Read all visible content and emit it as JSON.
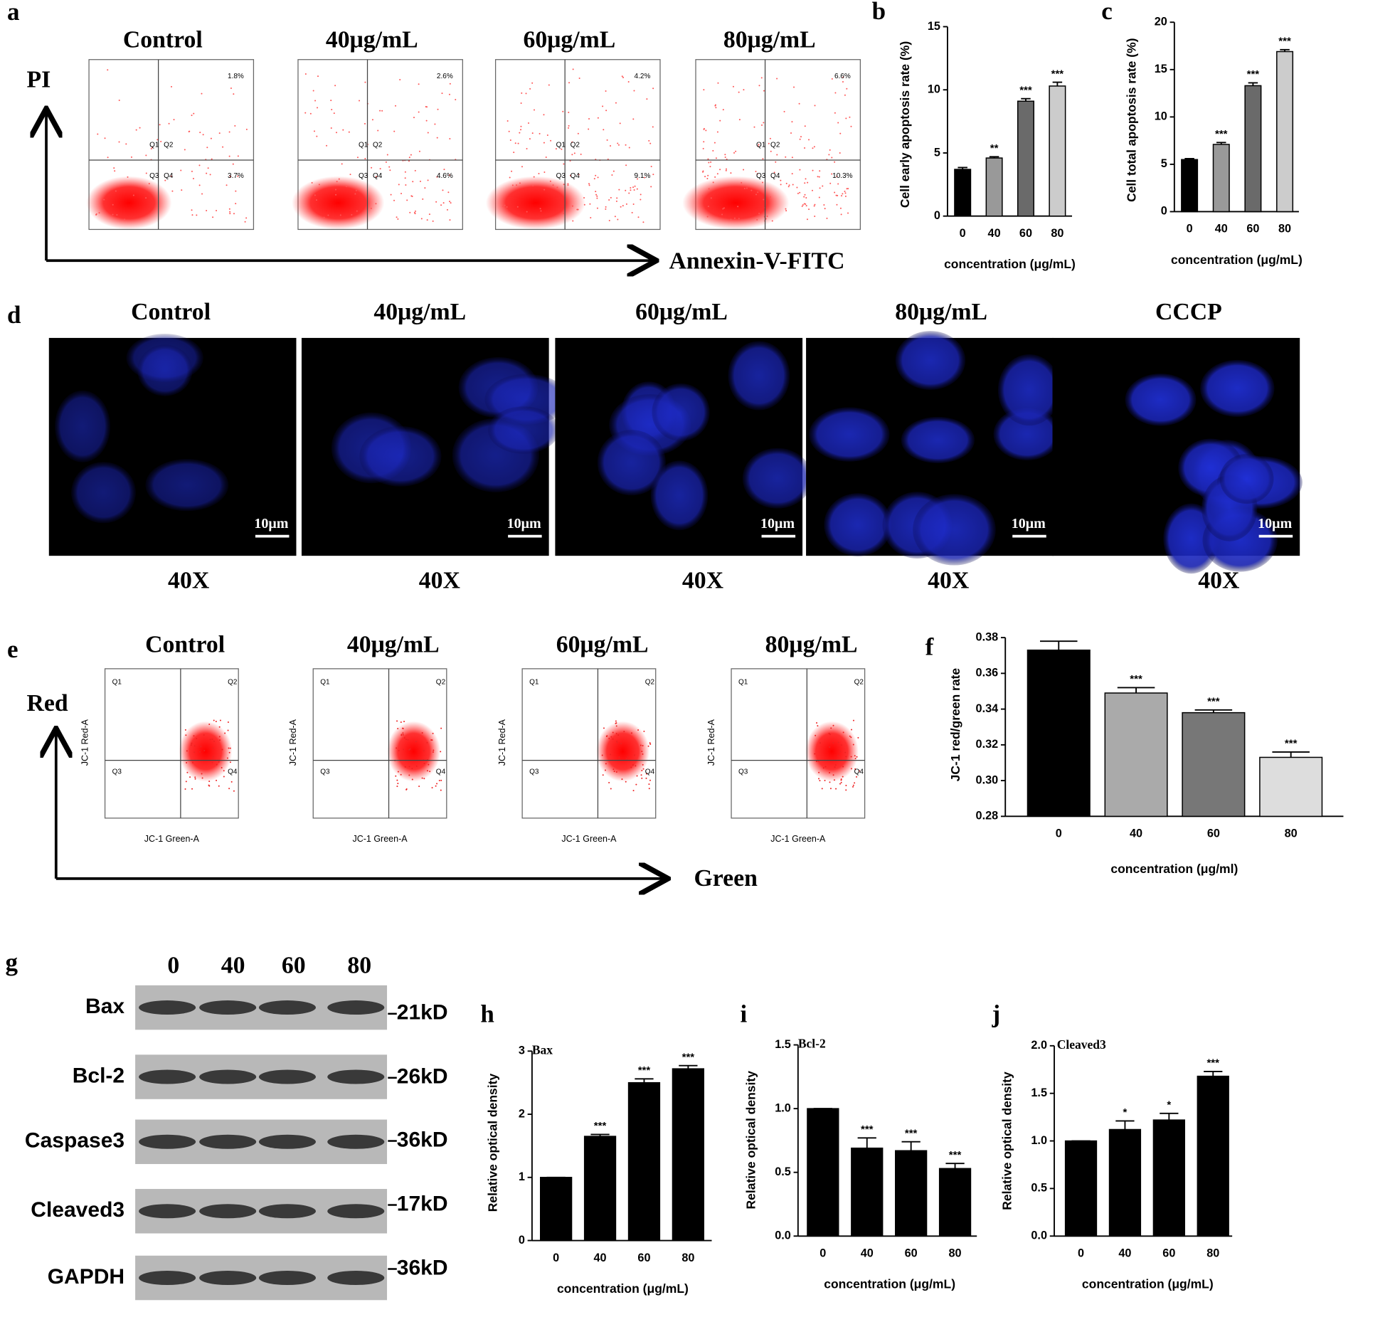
{
  "flow_apoptosis": {
    "label": "a",
    "y_axis": "PI",
    "x_axis": "Annexin-V-FITC",
    "quadrants": [
      "Q1",
      "Q2",
      "Q3",
      "Q4"
    ],
    "samples": [
      {
        "title": "Control",
        "upper_right": "1.8%",
        "lower_right": "3.7%"
      },
      {
        "title": "40μg/mL",
        "upper_right": "2.6%",
        "lower_right": "4.6%"
      },
      {
        "title": "60μg/mL",
        "upper_right": "4.2%",
        "lower_right": "9.1%"
      },
      {
        "title": "80μg/mL",
        "upper_right": "6.6%",
        "lower_right": "10.3%"
      }
    ]
  },
  "microscopy": {
    "label": "d",
    "scale_bar": "10μm",
    "magnification": "40X",
    "samples": [
      "Control",
      "40μg/mL",
      "60μg/mL",
      "80μg/mL",
      "CCCP"
    ]
  },
  "flow_jc1": {
    "label": "e",
    "y_axis": "Red",
    "x_axis": "Green",
    "panel_y_axis": "JC-1 Red-A",
    "panel_x_axis": "JC-1 Green-A",
    "quadrants": [
      "Q1",
      "Q2",
      "Q3",
      "Q4"
    ],
    "samples": [
      "Control",
      "40μg/mL",
      "60μg/mL",
      "80μg/mL"
    ]
  },
  "western_blot": {
    "label": "g",
    "lanes": [
      "0",
      "40",
      "60",
      "80"
    ],
    "proteins": [
      {
        "name": "Bax",
        "size": "21kD"
      },
      {
        "name": "Bcl-2",
        "size": "26kD"
      },
      {
        "name": "Caspase3",
        "size": "36kD"
      },
      {
        "name": "Cleaved3",
        "size": "17kD"
      },
      {
        "name": "GAPDH",
        "size": "36kD"
      }
    ]
  },
  "chart_data": [
    {
      "type": "bar",
      "label": "b",
      "ylabel": "Cell early apoptosis rate (%)",
      "xlabel": "concentration (μg/mL)",
      "categories": [
        "0",
        "40",
        "60",
        "80"
      ],
      "values": [
        3.7,
        4.6,
        9.1,
        10.3
      ],
      "errors": [
        0.15,
        0.1,
        0.2,
        0.3
      ],
      "annotations": [
        null,
        "**",
        "***",
        "***"
      ],
      "colors": [
        "#000000",
        "#999999",
        "#6a6a6a",
        "#cccccc"
      ],
      "ylim": [
        0,
        15
      ],
      "yticks": [
        0,
        5,
        10,
        15
      ]
    },
    {
      "type": "bar",
      "label": "c",
      "ylabel": "Cell total apoptosis rate (%)",
      "xlabel": "concentration (μg/mL)",
      "categories": [
        "0",
        "40",
        "60",
        "80"
      ],
      "values": [
        5.5,
        7.1,
        13.3,
        16.9
      ],
      "errors": [
        0.1,
        0.2,
        0.3,
        0.2
      ],
      "annotations": [
        null,
        "***",
        "***",
        "***"
      ],
      "colors": [
        "#000000",
        "#999999",
        "#6a6a6a",
        "#cccccc"
      ],
      "ylim": [
        0,
        20
      ],
      "yticks": [
        0,
        5,
        10,
        15,
        20
      ]
    },
    {
      "type": "bar",
      "label": "f",
      "ylabel": "JC-1   red/green rate",
      "xlabel": "concentration (μg/ml)",
      "categories": [
        "0",
        "40",
        "60",
        "80"
      ],
      "values": [
        0.373,
        0.349,
        0.338,
        0.313
      ],
      "errors": [
        0.005,
        0.003,
        0.0015,
        0.003
      ],
      "annotations": [
        null,
        "***",
        "***",
        "***"
      ],
      "colors": [
        "#000000",
        "#aaaaaa",
        "#777777",
        "#dddddd"
      ],
      "ylim": [
        0.28,
        0.38
      ],
      "yticks": [
        0.28,
        {
          "value": 0.3,
          "label": "0.30"
        },
        0.32,
        0.34,
        0.36,
        0.38
      ]
    },
    {
      "type": "bar",
      "label": "h",
      "title": "Bax",
      "ylabel": "Relative optical density",
      "xlabel": "concentration (μg/mL)",
      "categories": [
        "0",
        "40",
        "60",
        "80"
      ],
      "values": [
        1,
        1.65,
        2.5,
        2.72
      ],
      "errors": [
        0,
        0.03,
        0.06,
        0.05
      ],
      "annotations": [
        null,
        "***",
        "***",
        "***"
      ],
      "color": "#000000",
      "ylim": [
        0,
        3
      ],
      "yticks": [
        0,
        1,
        2,
        3
      ]
    },
    {
      "type": "bar",
      "label": "i",
      "title": "Bcl-2",
      "ylabel": "Relative optical density",
      "xlabel": "concentration (μg/mL)",
      "categories": [
        "0",
        "40",
        "60",
        "80"
      ],
      "values": [
        1,
        0.69,
        0.67,
        0.53
      ],
      "errors": [
        0,
        0.08,
        0.07,
        0.04
      ],
      "annotations": [
        null,
        "***",
        "***",
        "***"
      ],
      "color": "#000000",
      "ylim": [
        0,
        1.5
      ],
      "yticks": [
        {
          "value": 0,
          "label": "0.0"
        },
        0.5,
        {
          "value": 1,
          "label": "1.0"
        },
        1.5
      ]
    },
    {
      "type": "bar",
      "label": "j",
      "title": "Cleaved3",
      "ylabel": "Relative optical density",
      "xlabel": "concentration (μg/mL)",
      "categories": [
        "0",
        "40",
        "60",
        "80"
      ],
      "values": [
        1,
        1.12,
        1.22,
        1.68
      ],
      "errors": [
        0,
        0.09,
        0.07,
        0.05
      ],
      "annotations": [
        null,
        "*",
        "*",
        "***"
      ],
      "color": "#000000",
      "ylim": [
        0,
        2
      ],
      "yticks": [
        {
          "value": 0,
          "label": "0.0"
        },
        0.5,
        {
          "value": 1,
          "label": "1.0"
        },
        1.5,
        {
          "value": 2,
          "label": "2.0"
        }
      ]
    }
  ]
}
